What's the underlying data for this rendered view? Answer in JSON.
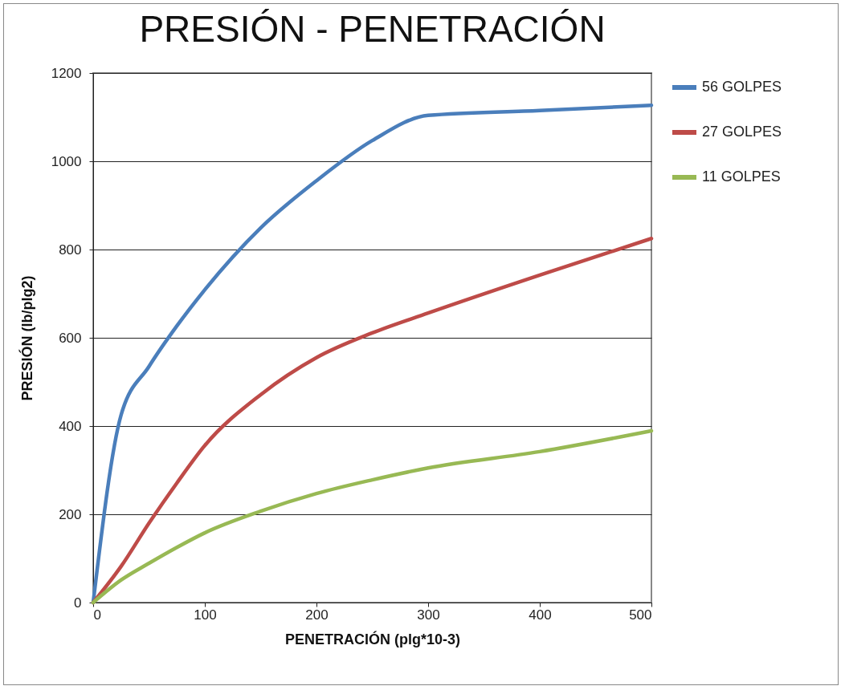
{
  "chart_data": {
    "type": "line",
    "title": "PRESIÓN - PENETRACIÓN",
    "xlabel": "PENETRACIÓN  (plg*10-3)",
    "ylabel": "PRESIÓN (lb/plg2)",
    "xlim": [
      0,
      500
    ],
    "xticks": [
      0,
      100,
      200,
      300,
      400,
      500
    ],
    "ylim": [
      0,
      1200
    ],
    "yticks": [
      0,
      200,
      400,
      600,
      800,
      1000,
      1200
    ],
    "grid": "y",
    "legend": "right",
    "series": [
      {
        "name": "56 GOLPES",
        "color": "#4a7ebb",
        "x": [
          0,
          25,
          50,
          75,
          100,
          150,
          200,
          250,
          300,
          400,
          500
        ],
        "values": [
          0,
          425,
          535,
          627,
          709,
          849,
          956,
          1047,
          1104,
          1115,
          1127
        ]
      },
      {
        "name": "27 GOLPES",
        "color": "#be4b48",
        "x": [
          0,
          25,
          50,
          75,
          100,
          150,
          200,
          250,
          300,
          400,
          500
        ],
        "values": [
          0,
          82,
          180,
          271,
          356,
          471,
          555,
          611,
          656,
          742,
          825
        ]
      },
      {
        "name": "11 GOLPES",
        "color": "#98b954",
        "x": [
          0,
          25,
          50,
          75,
          100,
          150,
          200,
          250,
          300,
          400,
          500
        ],
        "values": [
          0,
          51,
          89,
          125,
          158,
          207,
          247,
          278,
          305,
          342,
          389
        ]
      }
    ]
  }
}
